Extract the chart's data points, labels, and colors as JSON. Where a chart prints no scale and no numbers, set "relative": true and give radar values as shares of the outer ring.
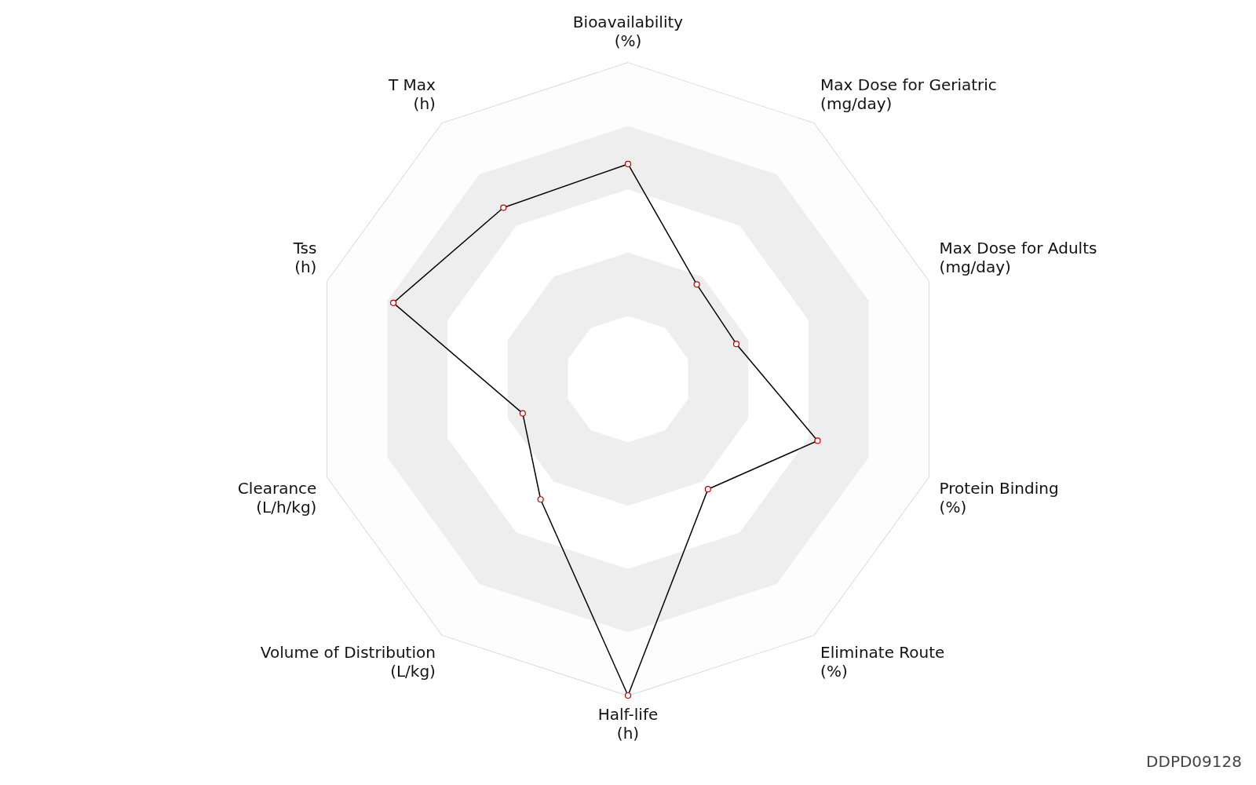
{
  "chart_data": {
    "type": "radar",
    "relative": true,
    "grid": true,
    "marker": "circle",
    "legend": false,
    "categories": [
      "Bioavailability\n(%)",
      "Max Dose for Geriatric\n(mg/day)",
      "Max Dose for Adults\n(mg/day)",
      "Protein Binding\n(%)",
      "Eliminate Route\n(%)",
      "Half-life\n(h)",
      "Volume of Distribution\n(L/kg)",
      "Clearance\n(L/h/kg)",
      "Tss\n(h)",
      "T Max\n(h)"
    ],
    "series": [
      {
        "color": "#000000",
        "values": [
          0.68,
          0.37,
          0.36,
          0.63,
          0.43,
          1.0,
          0.47,
          0.35,
          0.78,
          0.67
        ]
      }
    ],
    "annotations": [
      "DDPD09128"
    ]
  }
}
